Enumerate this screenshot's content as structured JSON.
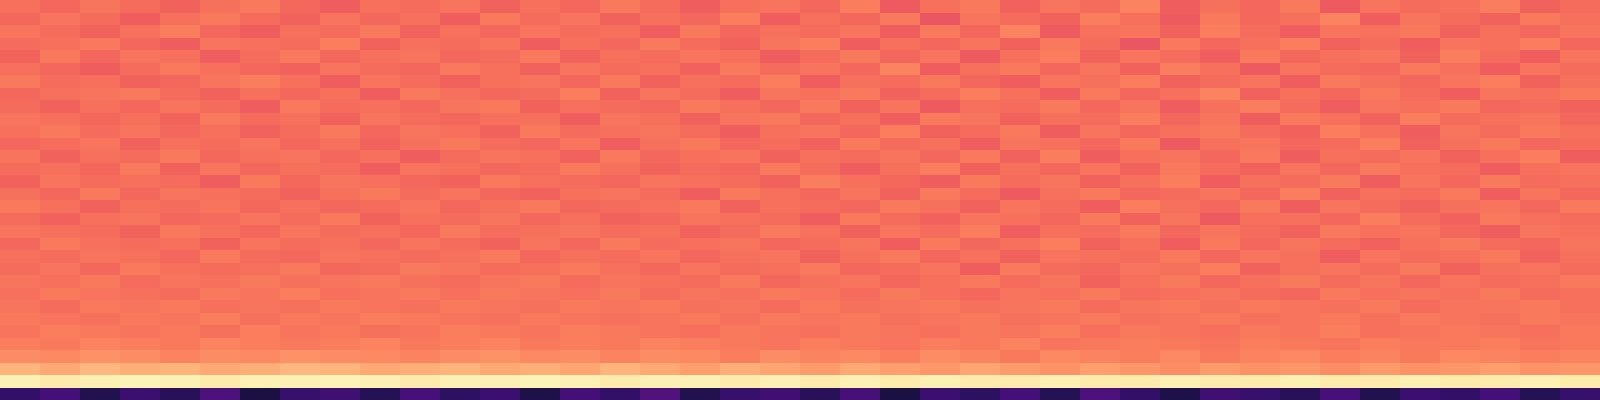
{
  "chart_data": {
    "type": "heatmap",
    "tick_labels": false,
    "color": "magma",
    "color_range": [
      0,
      100
    ],
    "cells": [
      [
        70,
        68,
        71,
        69,
        67,
        70,
        72,
        68,
        66,
        70,
        69,
        71,
        67,
        70,
        68,
        72,
        69,
        66,
        70,
        71,
        68,
        73,
        65,
        70,
        72,
        67,
        71,
        69,
        74,
        66,
        70,
        68,
        72,
        65,
        71,
        69,
        70,
        73,
        67,
        69
      ],
      [
        68,
        71,
        69,
        66,
        70,
        72,
        69,
        67,
        71,
        68,
        70,
        66,
        72,
        69,
        71,
        67,
        70,
        68,
        73,
        66,
        70,
        68,
        72,
        64,
        71,
        69,
        67,
        73,
        70,
        65,
        72,
        68,
        70,
        74,
        66,
        71,
        69,
        67,
        72,
        70
      ],
      [
        71,
        69,
        67,
        70,
        73,
        68,
        66,
        70,
        69,
        72,
        67,
        70,
        68,
        71,
        69,
        70,
        66,
        72,
        68,
        70,
        69,
        71,
        66,
        72,
        68,
        74,
        65,
        70,
        71,
        67,
        73,
        69,
        66,
        71,
        70,
        72,
        67,
        70,
        68,
        71
      ],
      [
        69,
        70,
        72,
        68,
        66,
        71,
        70,
        69,
        73,
        67,
        70,
        69,
        71,
        66,
        70,
        68,
        72,
        69,
        67,
        71,
        73,
        66,
        70,
        68,
        71,
        67,
        72,
        69,
        64,
        72,
        68,
        70,
        73,
        67,
        69,
        66,
        71,
        70,
        73,
        68
      ],
      [
        67,
        72,
        68,
        71,
        70,
        66,
        69,
        72,
        68,
        70,
        71,
        68,
        69,
        72,
        67,
        70,
        69,
        71,
        70,
        66,
        69,
        72,
        68,
        71,
        65,
        70,
        73,
        67,
        71,
        69,
        66,
        72,
        68,
        70,
        71,
        67,
        73,
        69,
        66,
        71
      ],
      [
        70,
        68,
        66,
        69,
        72,
        70,
        68,
        67,
        71,
        69,
        68,
        72,
        70,
        67,
        71,
        69,
        70,
        67,
        72,
        69,
        71,
        68,
        74,
        66,
        70,
        72,
        68,
        71,
        67,
        73,
        70,
        65,
        71,
        69,
        68,
        72,
        70,
        66,
        71,
        69
      ],
      [
        72,
        69,
        70,
        67,
        68,
        71,
        73,
        70,
        66,
        71,
        69,
        67,
        70,
        71,
        68,
        72,
        67,
        70,
        69,
        73,
        66,
        70,
        69,
        72,
        68,
        66,
        71,
        70,
        73,
        67,
        69,
        71,
        66,
        72,
        70,
        68,
        71,
        73,
        67,
        70
      ],
      [
        68,
        70,
        71,
        72,
        69,
        67,
        70,
        68,
        70,
        66,
        72,
        70,
        68,
        69,
        73,
        67,
        71,
        69,
        66,
        71,
        70,
        72,
        67,
        69,
        73,
        70,
        66,
        72,
        68,
        70,
        74,
        67,
        70,
        68,
        72,
        69,
        66,
        71,
        70,
        72
      ],
      [
        69,
        67,
        70,
        68,
        71,
        69,
        66,
        72,
        69,
        70,
        68,
        71,
        72,
        67,
        70,
        69,
        68,
        72,
        70,
        68,
        72,
        67,
        71,
        65,
        70,
        69,
        72,
        68,
        71,
        66,
        70,
        73,
        69,
        66,
        71,
        70,
        72,
        68,
        69,
        67
      ],
      [
        71,
        70,
        68,
        70,
        67,
        72,
        69,
        70,
        67,
        71,
        69,
        68,
        70,
        70,
        66,
        71,
        70,
        67,
        71,
        72,
        68,
        70,
        66,
        72,
        71,
        67,
        70,
        69,
        73,
        68,
        71,
        66,
        72,
        70,
        67,
        73,
        69,
        70,
        71,
        68
      ],
      [
        70,
        72,
        69,
        71,
        68,
        70,
        67,
        69,
        72,
        68,
        71,
        70,
        67,
        72,
        69,
        70,
        71,
        69,
        66,
        70,
        71,
        68,
        73,
        67,
        69,
        72,
        66,
        71,
        68,
        70,
        72,
        69,
        67,
        73,
        70,
        66,
        71,
        69,
        72,
        70
      ],
      [
        68,
        69,
        71,
        67,
        70,
        69,
        71,
        68,
        70,
        67,
        70,
        72,
        69,
        68,
        71,
        66,
        70,
        72,
        68,
        69,
        67,
        72,
        69,
        70,
        66,
        71,
        70,
        68,
        72,
        65,
        70,
        71,
        68,
        69,
        73,
        67,
        70,
        72,
        68,
        69
      ],
      [
        71,
        67,
        70,
        69,
        72,
        68,
        70,
        71,
        68,
        70,
        66,
        69,
        71,
        70,
        67,
        72,
        68,
        70,
        71,
        67,
        70,
        69,
        71,
        68,
        72,
        67,
        73,
        66,
        70,
        71,
        68,
        72,
        66,
        70,
        69,
        71,
        67,
        70,
        73,
        66
      ],
      [
        69,
        70,
        68,
        72,
        67,
        71,
        68,
        70,
        69,
        66,
        71,
        70,
        68,
        69,
        72,
        70,
        67,
        69,
        68,
        72,
        69,
        66,
        70,
        73,
        67,
        70,
        68,
        71,
        67,
        72,
        69,
        67,
        71,
        68,
        72,
        70,
        69,
        66,
        70,
        71
      ],
      [
        67,
        71,
        69,
        70,
        69,
        66,
        72,
        68,
        71,
        70,
        68,
        67,
        72,
        70,
        69,
        68,
        71,
        70,
        69,
        67,
        73,
        70,
        68,
        66,
        72,
        69,
        71,
        67,
        70,
        73,
        66,
        70,
        69,
        72,
        66,
        71,
        68,
        72,
        69,
        70
      ],
      [
        70,
        68,
        72,
        68,
        71,
        70,
        69,
        67,
        70,
        72,
        69,
        71,
        68,
        67,
        70,
        71,
        69,
        66,
        72,
        70,
        68,
        71,
        67,
        72,
        69,
        65,
        70,
        72,
        68,
        69,
        71,
        68,
        73,
        67,
        70,
        69,
        72,
        66,
        71,
        68
      ],
      [
        72,
        70,
        67,
        70,
        69,
        71,
        68,
        70,
        68,
        69,
        71,
        68,
        70,
        72,
        68,
        69,
        70,
        72,
        67,
        70,
        69,
        68,
        72,
        70,
        67,
        71,
        69,
        66,
        73,
        70,
        68,
        72,
        66,
        71,
        69,
        67,
        70,
        71,
        68,
        72
      ],
      [
        69,
        67,
        70,
        71,
        68,
        69,
        71,
        69,
        72,
        67,
        70,
        69,
        71,
        68,
        70,
        67,
        68,
        71,
        70,
        69,
        66,
        72,
        69,
        67,
        71,
        70,
        68,
        72,
        67,
        71,
        65,
        70,
        70,
        68,
        73,
        69,
        67,
        72,
        70,
        69
      ],
      [
        71,
        70,
        69,
        67,
        72,
        70,
        68,
        71,
        69,
        70,
        68,
        72,
        69,
        70,
        71,
        69,
        70,
        67,
        69,
        72,
        70,
        67,
        71,
        69,
        73,
        66,
        70,
        69,
        72,
        68,
        71,
        69,
        67,
        72,
        70,
        71,
        68,
        66,
        71,
        70
      ],
      [
        68,
        72,
        70,
        69,
        70,
        67,
        71,
        69,
        70,
        68,
        71,
        69,
        67,
        71,
        68,
        72,
        69,
        70,
        71,
        68,
        69,
        71,
        66,
        72,
        68,
        70,
        73,
        67,
        70,
        66,
        72,
        68,
        71,
        69,
        67,
        70,
        72,
        69,
        68,
        71
      ],
      [
        70,
        69,
        71,
        70,
        68,
        72,
        69,
        68,
        71,
        70,
        69,
        70,
        72,
        68,
        70,
        69,
        71,
        68,
        70,
        71,
        67,
        70,
        72,
        68,
        70,
        67,
        71,
        70,
        69,
        72,
        68,
        71,
        70,
        66,
        71,
        69,
        70,
        72,
        67,
        70
      ],
      [
        69,
        71,
        68,
        72,
        70,
        69,
        70,
        72,
        68,
        69,
        72,
        71,
        69,
        70,
        72,
        70,
        68,
        71,
        69,
        70,
        72,
        68,
        69,
        71,
        66,
        72,
        69,
        68,
        71,
        70,
        73,
        67,
        70,
        71,
        69,
        72,
        67,
        70,
        71,
        69
      ],
      [
        71,
        70,
        72,
        69,
        71,
        70,
        72,
        70,
        71,
        72,
        70,
        69,
        71,
        72,
        69,
        71,
        70,
        69,
        72,
        68,
        70,
        71,
        68,
        70,
        72,
        69,
        71,
        67,
        70,
        72,
        68,
        70,
        72,
        69,
        71,
        68,
        71,
        69,
        70,
        72
      ],
      [
        70,
        72,
        71,
        70,
        69,
        72,
        71,
        73,
        70,
        71,
        72,
        70,
        72,
        71,
        70,
        72,
        69,
        71,
        70,
        72,
        71,
        69,
        72,
        70,
        68,
        71,
        70,
        72,
        69,
        70,
        71,
        69,
        68,
        72,
        70,
        71,
        70,
        72,
        69,
        70
      ],
      [
        71,
        69,
        72,
        71,
        72,
        70,
        71,
        70,
        72,
        71,
        70,
        72,
        71,
        70,
        72,
        71,
        72,
        70,
        71,
        69,
        72,
        70,
        71,
        72,
        70,
        71,
        72,
        69,
        71,
        72,
        70,
        72,
        71,
        70,
        72,
        69,
        71,
        71,
        72,
        70
      ],
      [
        72,
        71,
        70,
        72,
        71,
        73,
        70,
        72,
        71,
        73,
        72,
        71,
        70,
        72,
        71,
        70,
        71,
        72,
        70,
        72,
        71,
        72,
        70,
        71,
        72,
        70,
        71,
        72,
        70,
        71,
        72,
        70,
        71,
        72,
        70,
        72,
        71,
        70,
        72,
        71
      ],
      [
        71,
        73,
        72,
        71,
        72,
        70,
        73,
        71,
        72,
        70,
        71,
        73,
        72,
        71,
        73,
        72,
        71,
        70,
        72,
        71,
        70,
        72,
        71,
        70,
        72,
        71,
        73,
        70,
        72,
        71,
        70,
        72,
        71,
        73,
        70,
        71,
        72,
        71,
        70,
        72
      ],
      [
        73,
        72,
        74,
        73,
        72,
        74,
        73,
        72,
        73,
        74,
        72,
        73,
        74,
        72,
        73,
        72,
        74,
        73,
        72,
        71,
        73,
        72,
        71,
        73,
        72,
        74,
        71,
        72,
        73,
        72,
        71,
        73,
        72,
        71,
        73,
        72,
        72,
        73,
        71,
        72
      ],
      [
        76,
        75,
        77,
        76,
        74,
        76,
        75,
        77,
        76,
        75,
        74,
        76,
        77,
        75,
        76,
        74,
        76,
        75,
        73,
        76,
        74,
        75,
        73,
        76,
        74,
        72,
        75,
        74,
        73,
        75,
        72,
        74,
        75,
        73,
        74,
        72,
        75,
        74,
        73,
        74
      ],
      [
        84,
        82,
        85,
        83,
        84,
        82,
        83,
        85,
        84,
        82,
        83,
        84,
        82,
        83,
        81,
        84,
        82,
        80,
        83,
        81,
        79,
        82,
        80,
        78,
        81,
        79,
        77,
        80,
        78,
        76,
        79,
        77,
        78,
        76,
        79,
        77,
        78,
        80,
        77,
        78
      ],
      [
        97,
        96,
        97,
        98,
        97,
        96,
        97,
        97,
        98,
        97,
        96,
        97,
        97,
        98,
        97,
        96,
        97,
        97,
        96,
        97,
        96,
        97,
        96,
        97,
        96,
        96,
        97,
        96,
        96,
        97,
        96,
        96,
        97,
        96,
        96,
        97,
        96,
        96,
        97,
        96
      ],
      [
        18,
        22,
        14,
        20,
        16,
        24,
        12,
        19,
        21,
        15,
        23,
        17,
        20,
        13,
        22,
        18,
        25,
        14,
        19,
        21,
        16,
        23,
        12,
        20,
        17,
        22,
        15,
        24,
        18,
        13,
        21,
        19,
        16,
        23,
        14,
        20,
        18,
        22,
        15,
        19
      ]
    ]
  }
}
